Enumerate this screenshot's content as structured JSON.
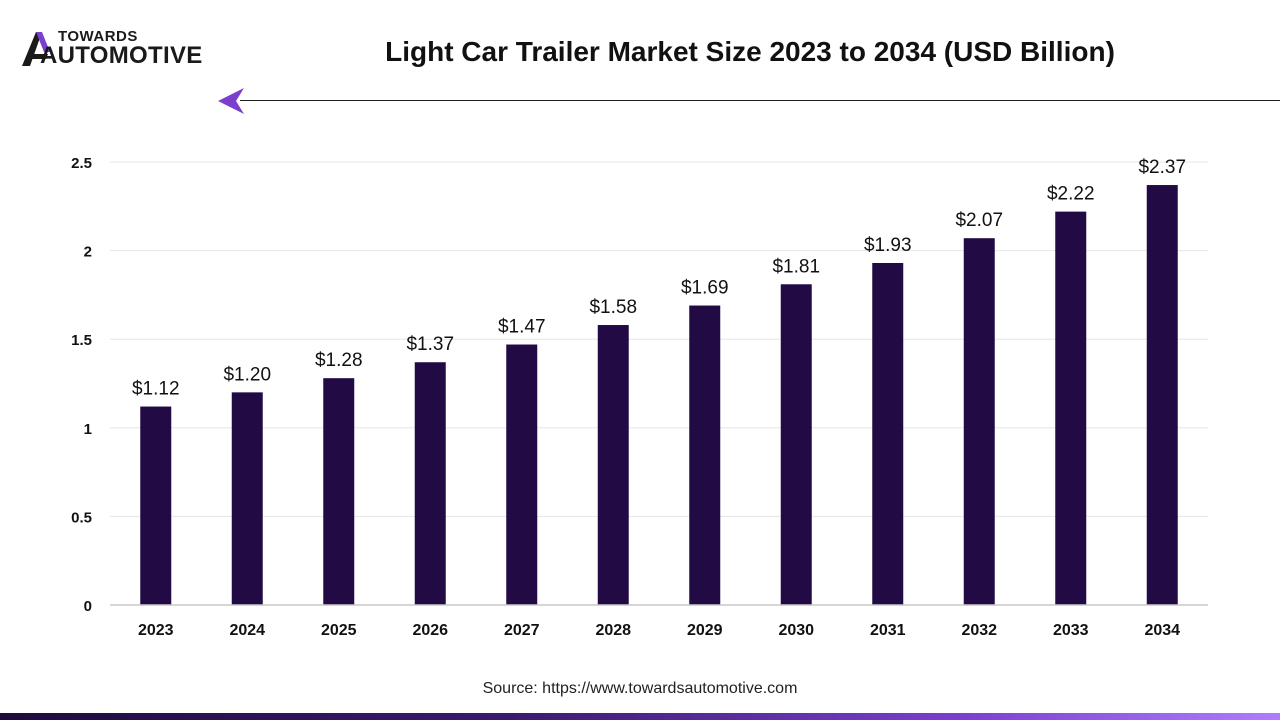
{
  "brand": {
    "top": "TOWARDS",
    "bottom": "AUTOMOTIVE",
    "color": "#1a1a1a",
    "accent": "#7b3fd0"
  },
  "source": "Source: https://www.towardsautomotive.com",
  "chart_data": {
    "type": "bar",
    "title": "Light Car Trailer Market Size 2023 to 2034 (USD Billion)",
    "xlabel": "",
    "ylabel": "",
    "categories": [
      "2023",
      "2024",
      "2025",
      "2026",
      "2027",
      "2028",
      "2029",
      "2030",
      "2031",
      "2032",
      "2033",
      "2034"
    ],
    "values": [
      1.12,
      1.2,
      1.28,
      1.37,
      1.47,
      1.58,
      1.69,
      1.81,
      1.93,
      2.07,
      2.22,
      2.37
    ],
    "data_labels": [
      "$1.12",
      "$1.20",
      "$1.28",
      "$1.37",
      "$1.47",
      "$1.58",
      "$1.69",
      "$1.81",
      "$1.93",
      "$2.07",
      "$2.22",
      "$2.37"
    ],
    "yticks": [
      0,
      0.5,
      1,
      1.5,
      2,
      2.5
    ],
    "ytick_labels": [
      "0",
      "0.5",
      "1",
      "1.5",
      "2",
      "2.5"
    ],
    "ylim": [
      0,
      2.5
    ],
    "grid": true,
    "legend": "none",
    "bar_color": "#220b45",
    "grid_color": "#e6e6e6"
  }
}
